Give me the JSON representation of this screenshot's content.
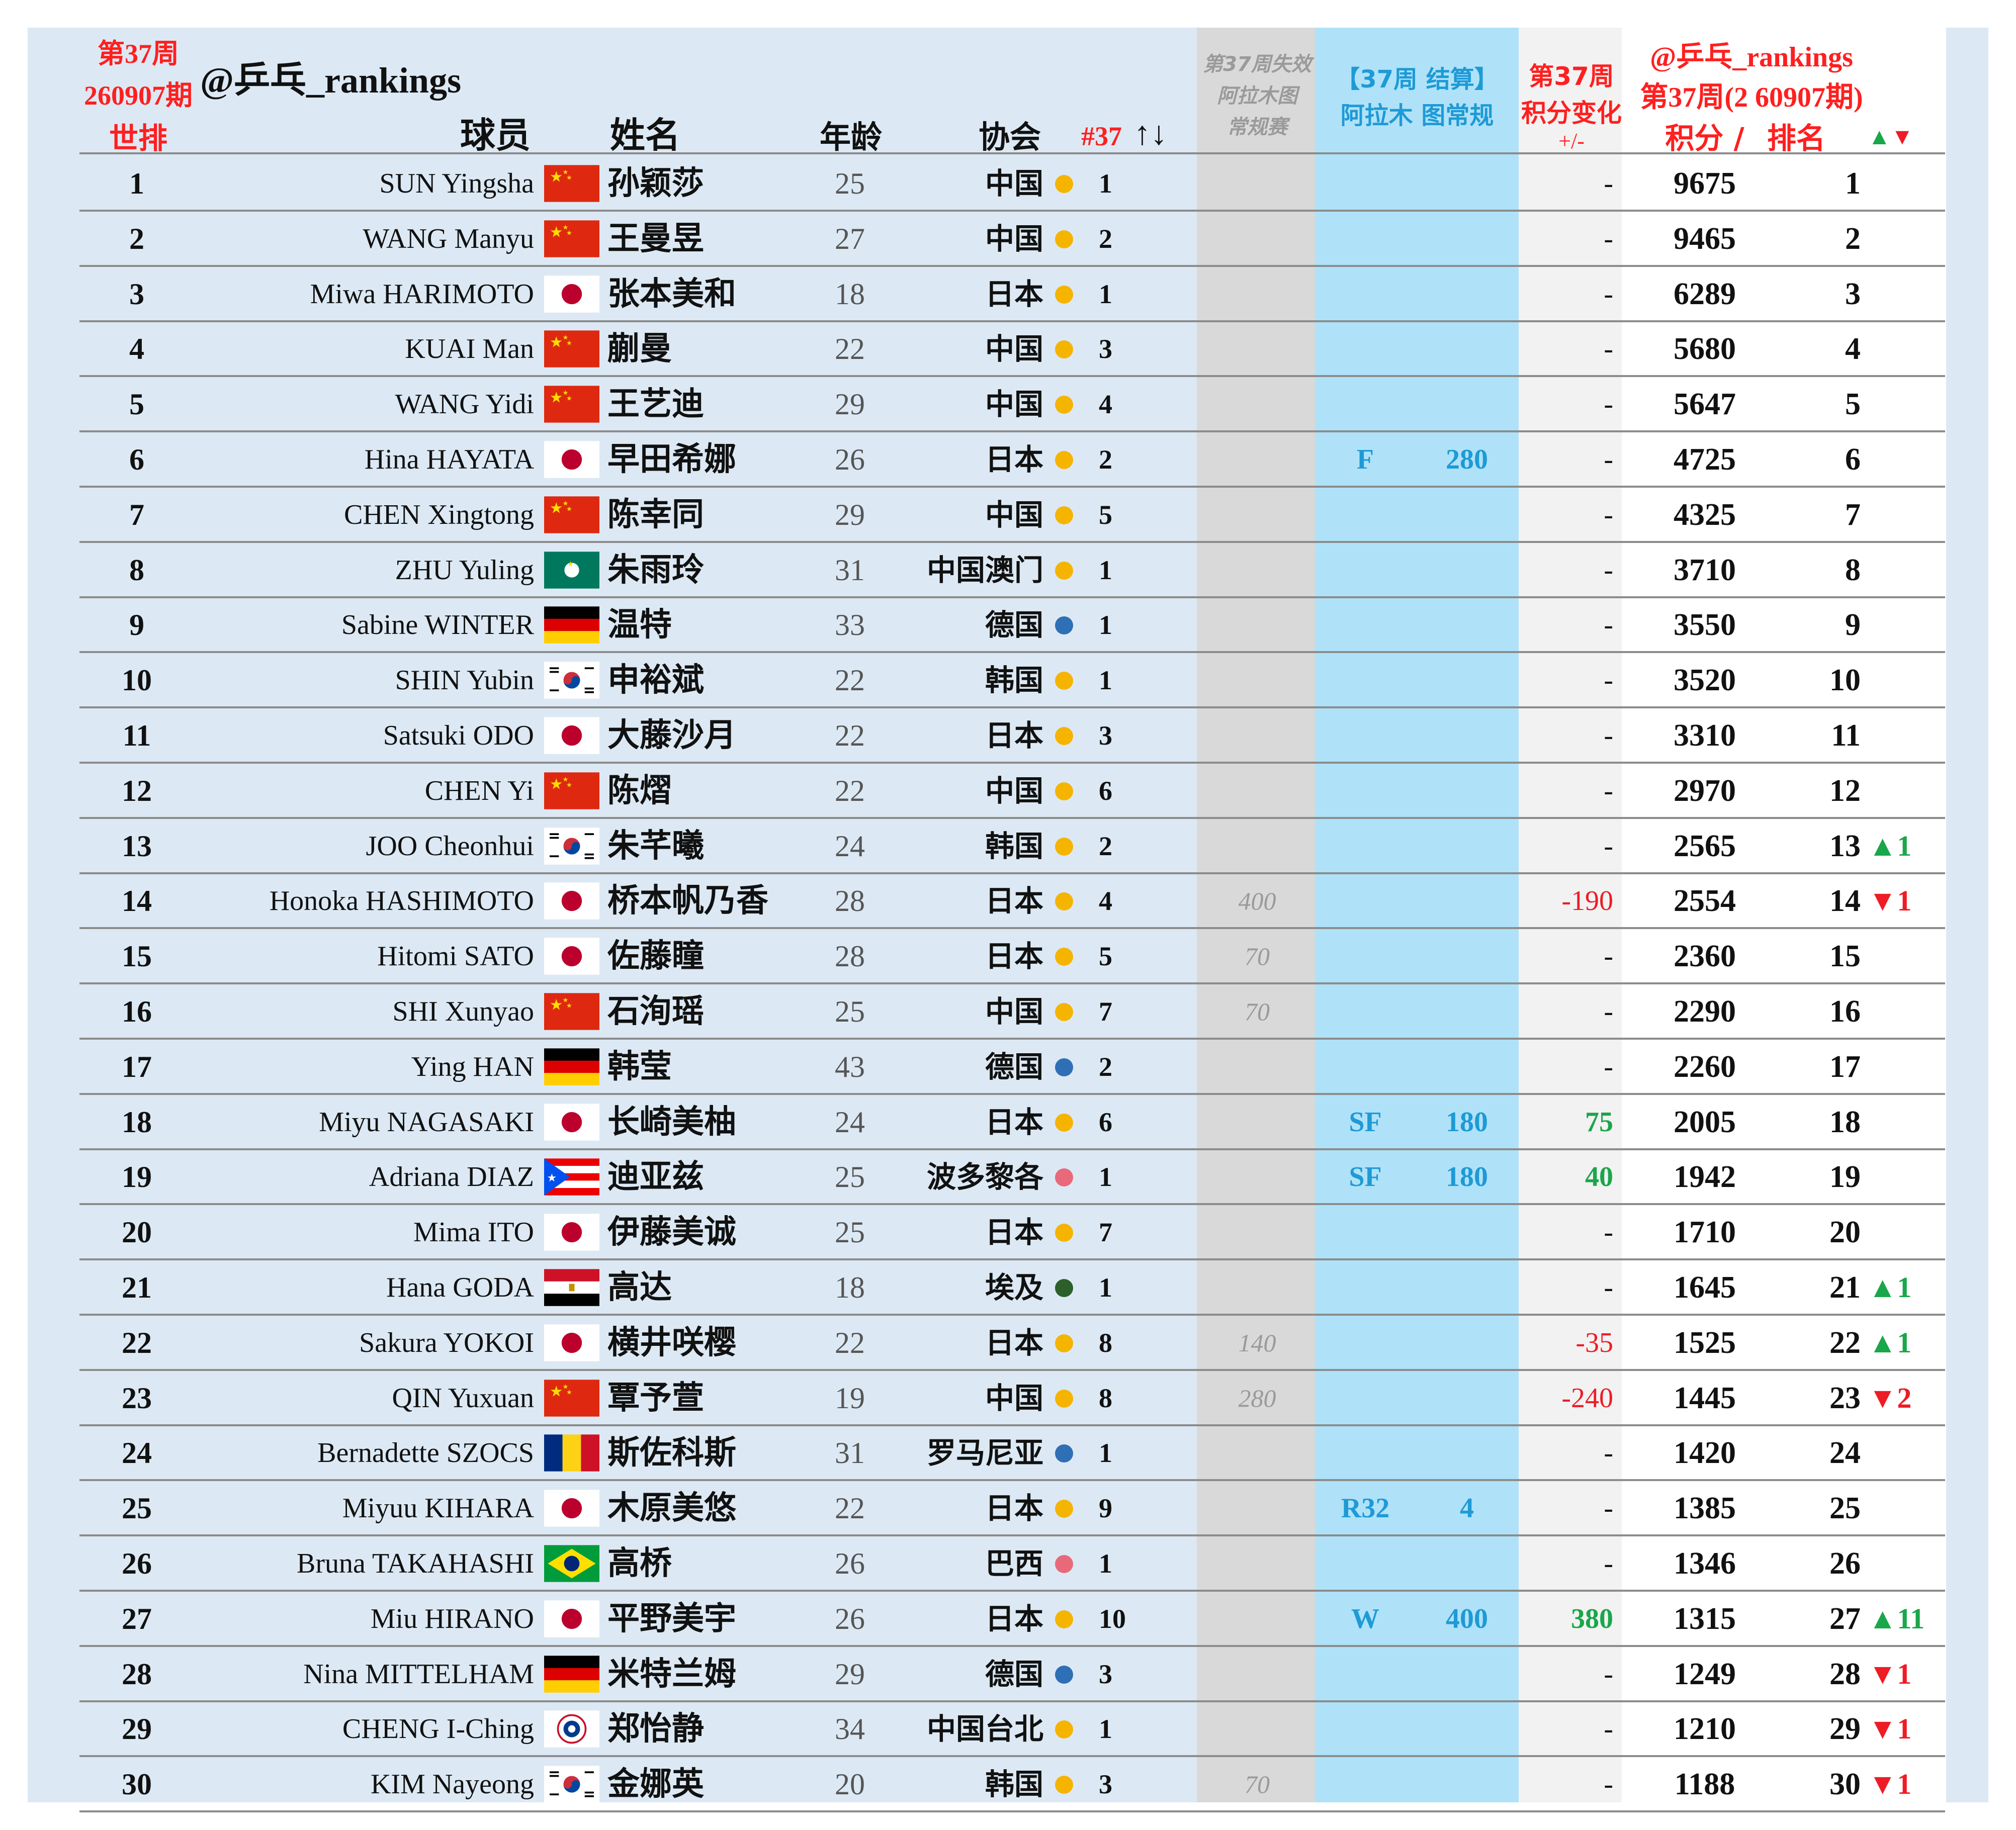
{
  "header": {
    "week_label": "第37周",
    "issue_label": "260907期",
    "world_rank_label": "世排",
    "handle": "@乒乓_rankings",
    "player_label": "球员",
    "name_label": "姓名",
    "age_label": "年龄",
    "assoc_label": "协会",
    "assoc_rank_label": "#37",
    "assoc_rank_arrows": "↑↓",
    "lost_label_1": "第37周失效",
    "lost_label_2": "阿拉木图",
    "lost_label_3": "常规赛",
    "result_label_1": "【37周 结算】",
    "result_label_2": "阿拉木 图常规",
    "change_label_1": "第37周",
    "change_label_2": "积分变化",
    "change_label_3": "+/-",
    "ranking_label_1": "@乒乓_rankings",
    "ranking_label_2": "第37周(2 60907期)",
    "points_label": "积分 /",
    "rank_label": "排名",
    "up_down_label": "▲▼"
  },
  "colors": {
    "gold_dot": "#f5b400",
    "blue_dot": "#2f6fb5",
    "pink_dot": "#e86a7a",
    "green_dot": "#2d5f2a",
    "up_green": "#1aa64a",
    "down_red": "#ee1c25",
    "result_cyan": "#1e9ad6"
  },
  "rows": [
    {
      "rank": "1",
      "en": "SUN Yingsha",
      "flag": "china-flag",
      "cn": "孙颖莎",
      "age": "25",
      "assoc": "中国",
      "dot": "gold",
      "arank": "1",
      "lost": "",
      "res": "",
      "rpts": "",
      "chg": "-",
      "pts": "9675",
      "pos": "1",
      "mv": ""
    },
    {
      "rank": "2",
      "en": "WANG Manyu",
      "flag": "china-flag",
      "cn": "王曼昱",
      "age": "27",
      "assoc": "中国",
      "dot": "gold",
      "arank": "2",
      "lost": "",
      "res": "",
      "rpts": "",
      "chg": "-",
      "pts": "9465",
      "pos": "2",
      "mv": ""
    },
    {
      "rank": "3",
      "en": "Miwa HARIMOTO",
      "flag": "japan-flag",
      "cn": "张本美和",
      "age": "18",
      "assoc": "日本",
      "dot": "gold",
      "arank": "1",
      "lost": "",
      "res": "",
      "rpts": "",
      "chg": "-",
      "pts": "6289",
      "pos": "3",
      "mv": ""
    },
    {
      "rank": "4",
      "en": "KUAI Man",
      "flag": "china-flag",
      "cn": "蒯曼",
      "age": "22",
      "assoc": "中国",
      "dot": "gold",
      "arank": "3",
      "lost": "",
      "res": "",
      "rpts": "",
      "chg": "-",
      "pts": "5680",
      "pos": "4",
      "mv": ""
    },
    {
      "rank": "5",
      "en": "WANG Yidi",
      "flag": "china-flag",
      "cn": "王艺迪",
      "age": "29",
      "assoc": "中国",
      "dot": "gold",
      "arank": "4",
      "lost": "",
      "res": "",
      "rpts": "",
      "chg": "-",
      "pts": "5647",
      "pos": "5",
      "mv": ""
    },
    {
      "rank": "6",
      "en": "Hina HAYATA",
      "flag": "japan-flag",
      "cn": "早田希娜",
      "age": "26",
      "assoc": "日本",
      "dot": "gold",
      "arank": "2",
      "lost": "",
      "res": "F",
      "rpts": "280",
      "chg": "-",
      "pts": "4725",
      "pos": "6",
      "mv": ""
    },
    {
      "rank": "7",
      "en": "CHEN Xingtong",
      "flag": "china-flag",
      "cn": "陈幸同",
      "age": "29",
      "assoc": "中国",
      "dot": "gold",
      "arank": "5",
      "lost": "",
      "res": "",
      "rpts": "",
      "chg": "-",
      "pts": "4325",
      "pos": "7",
      "mv": ""
    },
    {
      "rank": "8",
      "en": "ZHU Yuling",
      "flag": "macau-flag",
      "cn": "朱雨玲",
      "age": "31",
      "assoc": "中国澳门",
      "dot": "gold",
      "arank": "1",
      "lost": "",
      "res": "",
      "rpts": "",
      "chg": "-",
      "pts": "3710",
      "pos": "8",
      "mv": ""
    },
    {
      "rank": "9",
      "en": "Sabine WINTER",
      "flag": "germany-flag",
      "cn": "温特",
      "age": "33",
      "assoc": "德国",
      "dot": "blue",
      "arank": "1",
      "lost": "",
      "res": "",
      "rpts": "",
      "chg": "-",
      "pts": "3550",
      "pos": "9",
      "mv": ""
    },
    {
      "rank": "10",
      "en": "SHIN Yubin",
      "flag": "korea-flag",
      "cn": "申裕斌",
      "age": "22",
      "assoc": "韩国",
      "dot": "gold",
      "arank": "1",
      "lost": "",
      "res": "",
      "rpts": "",
      "chg": "-",
      "pts": "3520",
      "pos": "10",
      "mv": ""
    },
    {
      "rank": "11",
      "en": "Satsuki ODO",
      "flag": "japan-flag",
      "cn": "大藤沙月",
      "age": "22",
      "assoc": "日本",
      "dot": "gold",
      "arank": "3",
      "lost": "",
      "res": "",
      "rpts": "",
      "chg": "-",
      "pts": "3310",
      "pos": "11",
      "mv": ""
    },
    {
      "rank": "12",
      "en": "CHEN Yi",
      "flag": "china-flag",
      "cn": "陈熠",
      "age": "22",
      "assoc": "中国",
      "dot": "gold",
      "arank": "6",
      "lost": "",
      "res": "",
      "rpts": "",
      "chg": "-",
      "pts": "2970",
      "pos": "12",
      "mv": ""
    },
    {
      "rank": "13",
      "en": "JOO Cheonhui",
      "flag": "korea-flag",
      "cn": "朱芊曦",
      "age": "24",
      "assoc": "韩国",
      "dot": "gold",
      "arank": "2",
      "lost": "",
      "res": "",
      "rpts": "",
      "chg": "-",
      "pts": "2565",
      "pos": "13",
      "mv": "▲1"
    },
    {
      "rank": "14",
      "en": "Honoka HASHIMOTO",
      "flag": "japan-flag",
      "cn": "桥本帆乃香",
      "age": "28",
      "assoc": "日本",
      "dot": "gold",
      "arank": "4",
      "lost": "400",
      "res": "",
      "rpts": "",
      "chg": "-190",
      "pts": "2554",
      "pos": "14",
      "mv": "▼1"
    },
    {
      "rank": "15",
      "en": "Hitomi SATO",
      "flag": "japan-flag",
      "cn": "佐藤瞳",
      "age": "28",
      "assoc": "日本",
      "dot": "gold",
      "arank": "5",
      "lost": "70",
      "res": "",
      "rpts": "",
      "chg": "-",
      "pts": "2360",
      "pos": "15",
      "mv": ""
    },
    {
      "rank": "16",
      "en": "SHI Xunyao",
      "flag": "china-flag",
      "cn": "石洵瑶",
      "age": "25",
      "assoc": "中国",
      "dot": "gold",
      "arank": "7",
      "lost": "70",
      "res": "",
      "rpts": "",
      "chg": "-",
      "pts": "2290",
      "pos": "16",
      "mv": ""
    },
    {
      "rank": "17",
      "en": "Ying HAN",
      "flag": "germany-flag",
      "cn": "韩莹",
      "age": "43",
      "assoc": "德国",
      "dot": "blue",
      "arank": "2",
      "lost": "",
      "res": "",
      "rpts": "",
      "chg": "-",
      "pts": "2260",
      "pos": "17",
      "mv": ""
    },
    {
      "rank": "18",
      "en": "Miyu NAGASAKI",
      "flag": "japan-flag",
      "cn": "长崎美柚",
      "age": "24",
      "assoc": "日本",
      "dot": "gold",
      "arank": "6",
      "lost": "",
      "res": "SF",
      "rpts": "180",
      "chg": "75",
      "pts": "2005",
      "pos": "18",
      "mv": ""
    },
    {
      "rank": "19",
      "en": "Adriana DIAZ",
      "flag": "puerto-rico-flag",
      "cn": "迪亚兹",
      "age": "25",
      "assoc": "波多黎各",
      "dot": "pink",
      "arank": "1",
      "lost": "",
      "res": "SF",
      "rpts": "180",
      "chg": "40",
      "pts": "1942",
      "pos": "19",
      "mv": ""
    },
    {
      "rank": "20",
      "en": "Mima ITO",
      "flag": "japan-flag",
      "cn": "伊藤美诚",
      "age": "25",
      "assoc": "日本",
      "dot": "gold",
      "arank": "7",
      "lost": "",
      "res": "",
      "rpts": "",
      "chg": "-",
      "pts": "1710",
      "pos": "20",
      "mv": ""
    },
    {
      "rank": "21",
      "en": "Hana GODA",
      "flag": "egypt-flag",
      "cn": "高达",
      "age": "18",
      "assoc": "埃及",
      "dot": "green",
      "arank": "1",
      "lost": "",
      "res": "",
      "rpts": "",
      "chg": "-",
      "pts": "1645",
      "pos": "21",
      "mv": "▲1"
    },
    {
      "rank": "22",
      "en": "Sakura YOKOI",
      "flag": "japan-flag",
      "cn": "横井咲樱",
      "age": "22",
      "assoc": "日本",
      "dot": "gold",
      "arank": "8",
      "lost": "140",
      "res": "",
      "rpts": "",
      "chg": "-35",
      "pts": "1525",
      "pos": "22",
      "mv": "▲1"
    },
    {
      "rank": "23",
      "en": "QIN Yuxuan",
      "flag": "china-flag",
      "cn": "覃予萱",
      "age": "19",
      "assoc": "中国",
      "dot": "gold",
      "arank": "8",
      "lost": "280",
      "res": "",
      "rpts": "",
      "chg": "-240",
      "pts": "1445",
      "pos": "23",
      "mv": "▼2"
    },
    {
      "rank": "24",
      "en": "Bernadette SZOCS",
      "flag": "romania-flag",
      "cn": "斯佐科斯",
      "age": "31",
      "assoc": "罗马尼亚",
      "dot": "blue",
      "arank": "1",
      "lost": "",
      "res": "",
      "rpts": "",
      "chg": "-",
      "pts": "1420",
      "pos": "24",
      "mv": ""
    },
    {
      "rank": "25",
      "en": "Miyuu KIHARA",
      "flag": "japan-flag",
      "cn": "木原美悠",
      "age": "22",
      "assoc": "日本",
      "dot": "gold",
      "arank": "9",
      "lost": "",
      "res": "R32",
      "rpts": "4",
      "chg": "-",
      "pts": "1385",
      "pos": "25",
      "mv": ""
    },
    {
      "rank": "26",
      "en": "Bruna TAKAHASHI",
      "flag": "brazil-flag",
      "cn": "高桥",
      "age": "26",
      "assoc": "巴西",
      "dot": "pink",
      "arank": "1",
      "lost": "",
      "res": "",
      "rpts": "",
      "chg": "-",
      "pts": "1346",
      "pos": "26",
      "mv": ""
    },
    {
      "rank": "27",
      "en": "Miu HIRANO",
      "flag": "japan-flag",
      "cn": "平野美宇",
      "age": "26",
      "assoc": "日本",
      "dot": "gold",
      "arank": "10",
      "lost": "",
      "res": "W",
      "rpts": "400",
      "chg": "380",
      "pts": "1315",
      "pos": "27",
      "mv": "▲11"
    },
    {
      "rank": "28",
      "en": "Nina MITTELHAM",
      "flag": "germany-flag",
      "cn": "米特兰姆",
      "age": "29",
      "assoc": "德国",
      "dot": "blue",
      "arank": "3",
      "lost": "",
      "res": "",
      "rpts": "",
      "chg": "-",
      "pts": "1249",
      "pos": "28",
      "mv": "▼1"
    },
    {
      "rank": "29",
      "en": "CHENG I-Ching",
      "flag": "chinese-taipei-flag",
      "cn": "郑怡静",
      "age": "34",
      "assoc": "中国台北",
      "dot": "gold",
      "arank": "1",
      "lost": "",
      "res": "",
      "rpts": "",
      "chg": "-",
      "pts": "1210",
      "pos": "29",
      "mv": "▼1"
    },
    {
      "rank": "30",
      "en": "KIM Nayeong",
      "flag": "korea-flag",
      "cn": "金娜英",
      "age": "20",
      "assoc": "韩国",
      "dot": "gold",
      "arank": "3",
      "lost": "70",
      "res": "",
      "rpts": "",
      "chg": "-",
      "pts": "1188",
      "pos": "30",
      "mv": "▼1"
    }
  ]
}
